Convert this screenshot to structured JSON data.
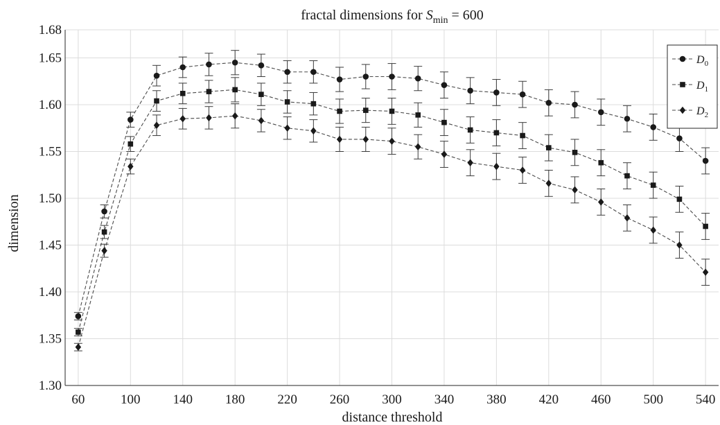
{
  "chart_data": {
    "type": "line",
    "title": {
      "prefix": "fractal dimensions for ",
      "symbol": "S",
      "subscript": "min",
      "suffix": " = 600"
    },
    "xlabel": "distance threshold",
    "ylabel": "dimension",
    "xlim": [
      50,
      550
    ],
    "ylim": [
      1.3,
      1.68
    ],
    "xticks": [
      60,
      100,
      140,
      180,
      220,
      260,
      300,
      340,
      380,
      420,
      460,
      500,
      540
    ],
    "yticks": [
      1.3,
      1.35,
      1.4,
      1.45,
      1.5,
      1.55,
      1.6,
      1.65,
      1.68
    ],
    "ytick_labels": [
      "1.30",
      "1.35",
      "1.40",
      "1.45",
      "1.50",
      "1.55",
      "1.60",
      "1.65",
      "1.68"
    ],
    "grid": true,
    "legend_position": "top-right",
    "x": [
      60,
      80,
      100,
      120,
      140,
      160,
      180,
      200,
      220,
      240,
      260,
      280,
      300,
      320,
      340,
      360,
      380,
      400,
      420,
      440,
      460,
      480,
      500,
      520,
      540
    ],
    "series": [
      {
        "name": "D",
        "sub": "0",
        "marker": "circle",
        "values": [
          1.374,
          1.486,
          1.584,
          1.631,
          1.64,
          1.643,
          1.645,
          1.642,
          1.635,
          1.635,
          1.627,
          1.63,
          1.63,
          1.628,
          1.621,
          1.615,
          1.613,
          1.611,
          1.602,
          1.6,
          1.592,
          1.585,
          1.576,
          1.564,
          1.54
        ],
        "errors": [
          0.004,
          0.007,
          0.008,
          0.011,
          0.011,
          0.012,
          0.013,
          0.012,
          0.012,
          0.012,
          0.013,
          0.013,
          0.014,
          0.013,
          0.014,
          0.014,
          0.014,
          0.014,
          0.014,
          0.014,
          0.014,
          0.014,
          0.014,
          0.014,
          0.014
        ]
      },
      {
        "name": "D",
        "sub": "1",
        "marker": "square",
        "values": [
          1.357,
          1.464,
          1.558,
          1.604,
          1.612,
          1.614,
          1.616,
          1.611,
          1.603,
          1.601,
          1.593,
          1.594,
          1.593,
          1.589,
          1.581,
          1.573,
          1.57,
          1.567,
          1.554,
          1.549,
          1.538,
          1.524,
          1.514,
          1.499,
          1.47
        ],
        "errors": [
          0.004,
          0.007,
          0.008,
          0.011,
          0.011,
          0.012,
          0.013,
          0.012,
          0.012,
          0.012,
          0.013,
          0.013,
          0.014,
          0.013,
          0.014,
          0.014,
          0.014,
          0.014,
          0.014,
          0.014,
          0.014,
          0.014,
          0.014,
          0.014,
          0.014
        ]
      },
      {
        "name": "D",
        "sub": "2",
        "marker": "diamond",
        "values": [
          1.341,
          1.444,
          1.534,
          1.578,
          1.585,
          1.586,
          1.588,
          1.583,
          1.575,
          1.572,
          1.563,
          1.563,
          1.561,
          1.555,
          1.547,
          1.538,
          1.534,
          1.53,
          1.516,
          1.509,
          1.496,
          1.479,
          1.466,
          1.45,
          1.421
        ],
        "errors": [
          0.004,
          0.007,
          0.008,
          0.011,
          0.011,
          0.012,
          0.013,
          0.012,
          0.012,
          0.012,
          0.013,
          0.013,
          0.014,
          0.013,
          0.014,
          0.014,
          0.014,
          0.014,
          0.014,
          0.014,
          0.014,
          0.014,
          0.014,
          0.014,
          0.014
        ]
      }
    ]
  }
}
